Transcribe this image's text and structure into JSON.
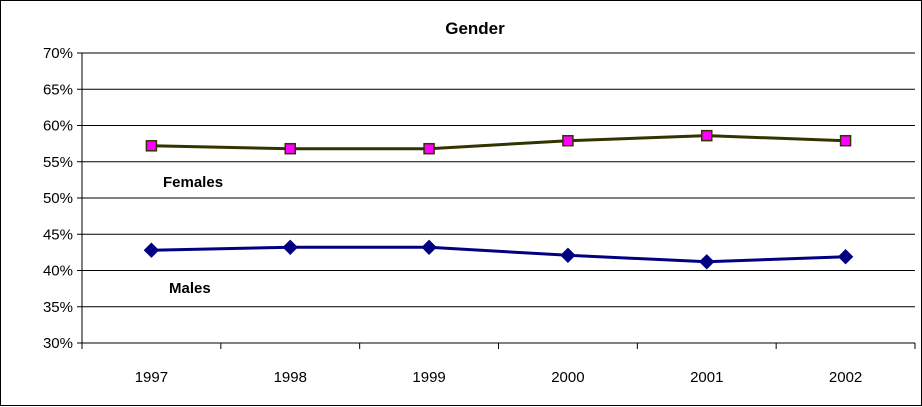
{
  "chart_data": {
    "type": "line",
    "title": "Gender",
    "xlabel": "",
    "ylabel": "",
    "categories": [
      "1997",
      "1998",
      "1999",
      "2000",
      "2001",
      "2002"
    ],
    "yticks": [
      "30%",
      "35%",
      "40%",
      "45%",
      "50%",
      "55%",
      "60%",
      "65%",
      "70%"
    ],
    "ylim": [
      30,
      70
    ],
    "grid": true,
    "legend": "none",
    "series": [
      {
        "name": "Females",
        "values": [
          57.2,
          56.8,
          56.8,
          57.9,
          58.6,
          57.9
        ],
        "line_color": "#333300",
        "marker": "square",
        "marker_color": "#ff00ff"
      },
      {
        "name": "Males",
        "values": [
          42.8,
          43.2,
          43.2,
          42.1,
          41.2,
          41.9
        ],
        "line_color": "#000080",
        "marker": "diamond",
        "marker_color": "#000080"
      }
    ]
  }
}
